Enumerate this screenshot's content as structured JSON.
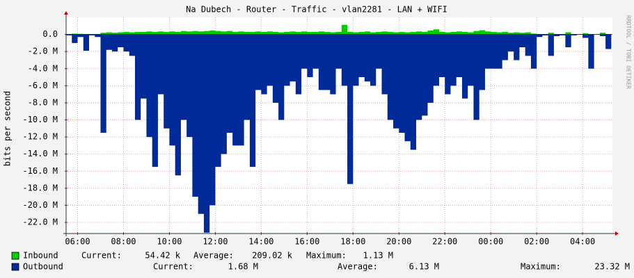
{
  "chart_data": {
    "type": "area",
    "title": "Na Dubech - Router - Traffic - vlan2281 - LAN + WIFI",
    "y_label": "bits per second",
    "side_note": "RRDTOOL / TOBI OETIKER",
    "grid": true,
    "xlim": [
      5.5,
      29.3
    ],
    "xticks": [
      {
        "value": 6,
        "label": "06:00"
      },
      {
        "value": 8,
        "label": "08:00"
      },
      {
        "value": 10,
        "label": "10:00"
      },
      {
        "value": 12,
        "label": "12:00"
      },
      {
        "value": 14,
        "label": "14:00"
      },
      {
        "value": 16,
        "label": "16:00"
      },
      {
        "value": 18,
        "label": "18:00"
      },
      {
        "value": 20,
        "label": "20:00"
      },
      {
        "value": 22,
        "label": "22:00"
      },
      {
        "value": 24,
        "label": "00:00"
      },
      {
        "value": 26,
        "label": "02:00"
      },
      {
        "value": 28,
        "label": "04:00"
      }
    ],
    "ylim": [
      -23300000,
      2000000
    ],
    "yticks": [
      {
        "value": 0,
        "label": "0.0"
      },
      {
        "value": -2000000,
        "label": "-2.0 M"
      },
      {
        "value": -4000000,
        "label": "-4.0 M"
      },
      {
        "value": -6000000,
        "label": "-6.0 M"
      },
      {
        "value": -8000000,
        "label": "-8.0 M"
      },
      {
        "value": -10000000,
        "label": "-10.0 M"
      },
      {
        "value": -12000000,
        "label": "-12.0 M"
      },
      {
        "value": -14000000,
        "label": "-14.0 M"
      },
      {
        "value": -16000000,
        "label": "-16.0 M"
      },
      {
        "value": -18000000,
        "label": "-18.0 M"
      },
      {
        "value": -20000000,
        "label": "-20.0 M"
      },
      {
        "value": -22000000,
        "label": "-22.0 M"
      }
    ],
    "x": [
      5.5,
      5.75,
      6,
      6.25,
      6.5,
      6.75,
      7,
      7.25,
      7.5,
      7.75,
      8,
      8.25,
      8.5,
      8.75,
      9,
      9.25,
      9.5,
      9.75,
      10,
      10.25,
      10.5,
      10.75,
      11,
      11.25,
      11.5,
      11.75,
      12,
      12.25,
      12.5,
      12.75,
      13,
      13.25,
      13.5,
      13.75,
      14,
      14.25,
      14.5,
      14.75,
      15,
      15.25,
      15.5,
      15.75,
      16,
      16.25,
      16.5,
      16.75,
      17,
      17.25,
      17.5,
      17.75,
      18,
      18.25,
      18.5,
      18.75,
      19,
      19.25,
      19.5,
      19.75,
      20,
      20.25,
      20.5,
      20.75,
      21,
      21.25,
      21.5,
      21.75,
      22,
      22.25,
      22.5,
      22.75,
      23,
      23.25,
      23.5,
      23.75,
      24,
      24.25,
      24.5,
      24.75,
      25,
      25.25,
      25.5,
      25.75,
      26,
      26.25,
      26.5,
      26.75,
      27,
      27.25,
      27.5,
      27.75,
      28,
      28.25,
      28.5,
      28.75,
      29
    ],
    "stat_labels": [
      "Current:",
      "Average:",
      "Maximum:"
    ],
    "series": [
      {
        "name": "Inbound",
        "color": "#00cc00",
        "stats": [
          "54.42 k",
          "209.02 k",
          "1.13 M"
        ],
        "values": [
          50000,
          100000,
          80000,
          60000,
          50000,
          60000,
          200000,
          250000,
          200000,
          250000,
          300000,
          250000,
          300000,
          300000,
          350000,
          300000,
          350000,
          300000,
          350000,
          300000,
          400000,
          350000,
          400000,
          350000,
          400000,
          450000,
          400000,
          350000,
          400000,
          300000,
          350000,
          300000,
          300000,
          350000,
          300000,
          350000,
          300000,
          250000,
          300000,
          350000,
          300000,
          350000,
          300000,
          300000,
          350000,
          300000,
          250000,
          300000,
          1130000,
          300000,
          250000,
          300000,
          350000,
          250000,
          300000,
          350000,
          300000,
          250000,
          300000,
          250000,
          300000,
          350000,
          300000,
          450000,
          600000,
          300000,
          250000,
          300000,
          350000,
          300000,
          250000,
          400000,
          500000,
          350000,
          300000,
          250000,
          300000,
          200000,
          250000,
          200000,
          250000,
          100000,
          50000,
          50000,
          200000,
          50000,
          50000,
          250000,
          50000,
          50000,
          150000,
          50000,
          50000,
          200000,
          50000
        ]
      },
      {
        "name": "Outbound",
        "color": "#002a97",
        "stats": [
          "1.68 M",
          "6.13 M",
          "23.32 M"
        ],
        "values": [
          -100000,
          -1000000,
          -300000,
          -1900000,
          -100000,
          -300000,
          -11500000,
          -1800000,
          -2000000,
          -1500000,
          -2000000,
          -2500000,
          -10000000,
          -7500000,
          -12000000,
          -15500000,
          -7000000,
          -11000000,
          -13000000,
          -16500000,
          -10000000,
          -12000000,
          -19000000,
          -21000000,
          -23200000,
          -20000000,
          -15500000,
          -14000000,
          -11500000,
          -13000000,
          -13000000,
          -10000000,
          -15500000,
          -6500000,
          -7000000,
          -6000000,
          -8000000,
          -10000000,
          -6000000,
          -5500000,
          -7000000,
          -4000000,
          -5000000,
          -4000000,
          -6500000,
          -6500000,
          -7000000,
          -4000000,
          -6000000,
          -17500000,
          -6000000,
          -5000000,
          -5500000,
          -6000000,
          -4000000,
          -7000000,
          -10000000,
          -11000000,
          -11500000,
          -12500000,
          -13500000,
          -10000000,
          -9500000,
          -8000000,
          -6000000,
          -5000000,
          -7000000,
          -6000000,
          -5000000,
          -7500000,
          -6000000,
          -10000000,
          -6500000,
          -4000000,
          -4000000,
          -4000000,
          -3000000,
          -2000000,
          -3000000,
          -1500000,
          -2500000,
          -4000000,
          -300000,
          -100000,
          -2500000,
          -200000,
          -100000,
          -1500000,
          -100000,
          0,
          -400000,
          -4000000,
          0,
          -200000,
          -1700000
        ]
      }
    ]
  }
}
